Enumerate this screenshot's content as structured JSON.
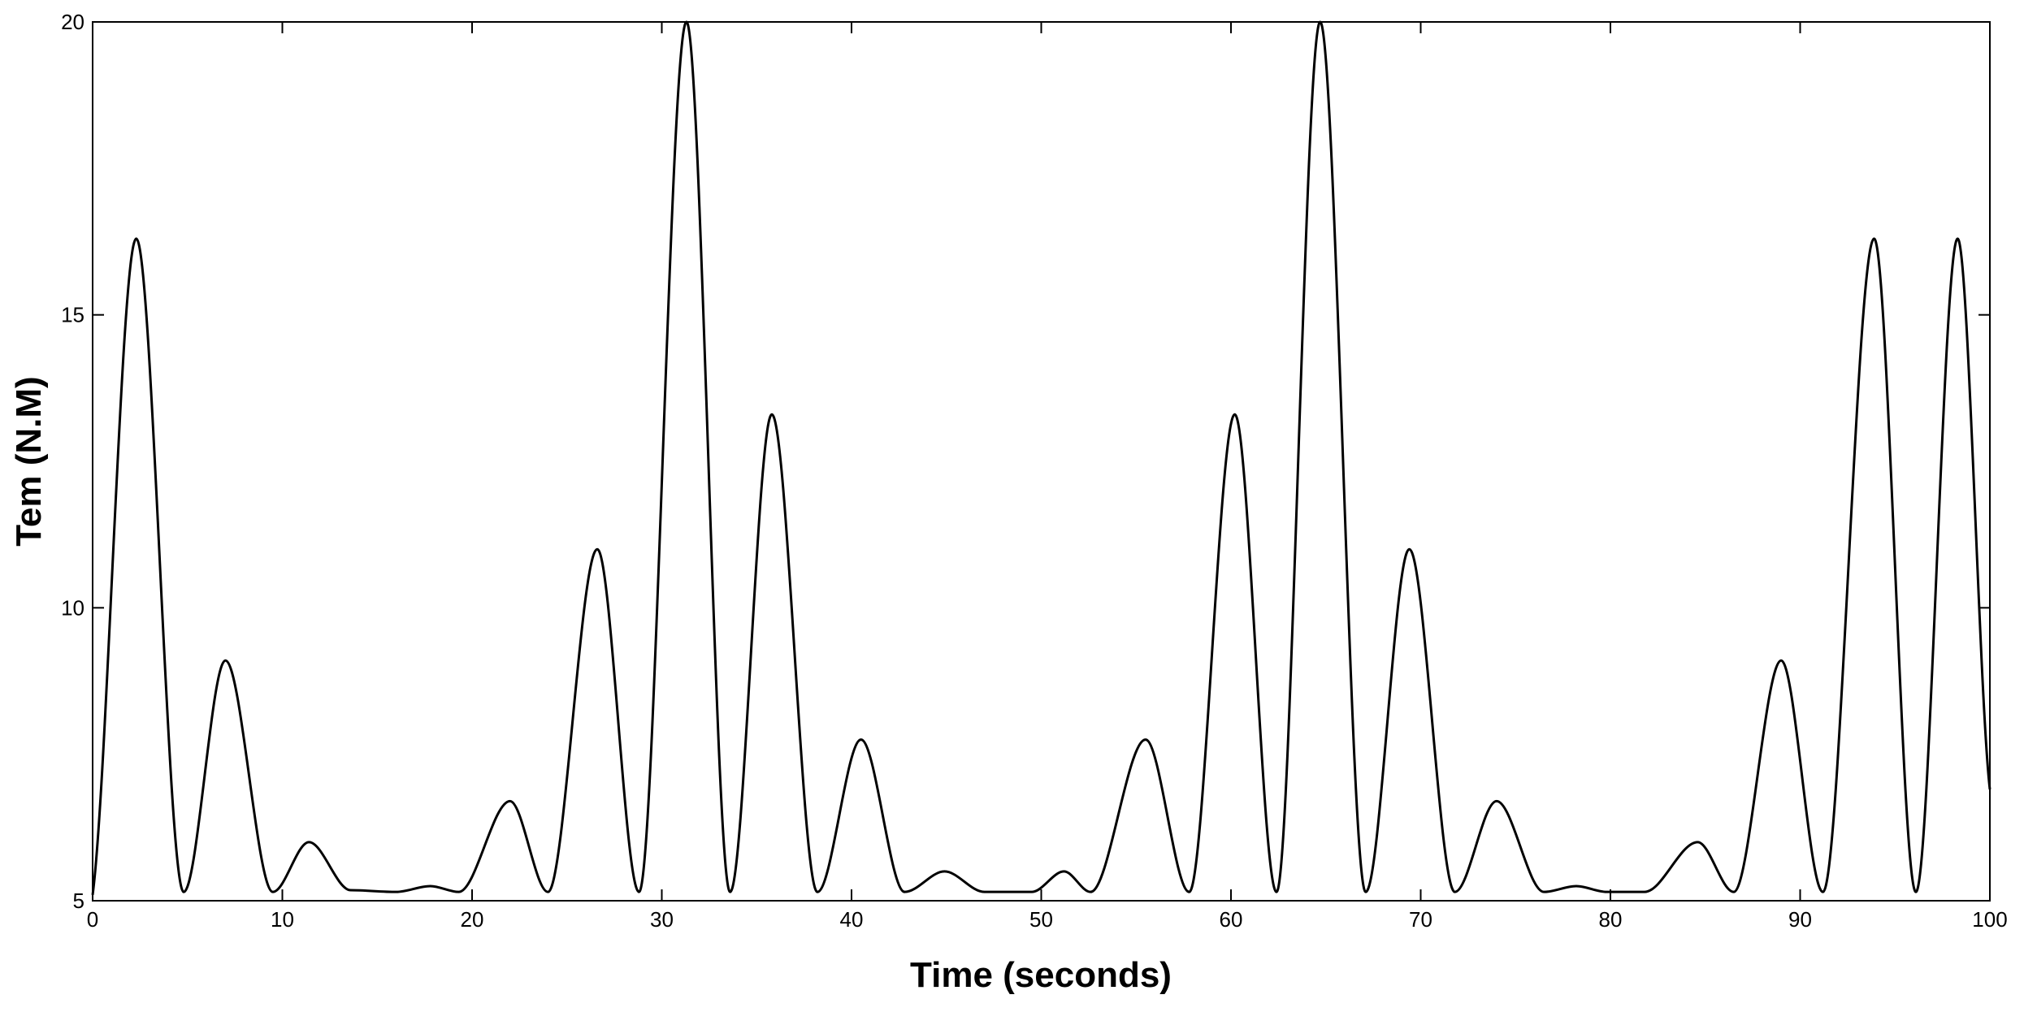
{
  "chart_data": {
    "type": "line",
    "x_label": "Time (seconds)",
    "y_label": "Tem (N.M)",
    "xlim": [
      0,
      100
    ],
    "ylim": [
      5,
      20
    ],
    "xticks": [
      0,
      10,
      20,
      30,
      40,
      50,
      60,
      70,
      80,
      90,
      100
    ],
    "yticks": [
      5,
      10,
      15,
      20
    ],
    "grid": false,
    "series": [
      {
        "color": "#000000",
        "x": [
          0,
          2.3,
          4.8,
          7.0,
          9.5,
          11.4,
          13.6,
          16.0,
          17.8,
          19.3,
          22.0,
          24.0,
          26.6,
          28.8,
          31.3,
          33.6,
          35.8,
          38.2,
          40.5,
          42.8,
          44.9,
          47.0,
          49.5,
          51.2,
          52.6,
          55.5,
          57.8,
          60.2,
          62.4,
          64.7,
          67.1,
          69.4,
          71.8,
          74.0,
          76.5,
          78.2,
          79.8,
          81.8,
          84.6,
          86.5,
          89.0,
          91.2,
          93.9,
          96.1,
          98.3,
          100
        ],
        "values": [
          5.1,
          16.3,
          5.15,
          9.1,
          5.15,
          6.0,
          5.18,
          5.15,
          5.25,
          5.15,
          6.7,
          5.15,
          11.0,
          5.15,
          20,
          5.15,
          13.3,
          5.15,
          7.75,
          5.15,
          5.5,
          5.15,
          5.15,
          5.5,
          5.15,
          7.75,
          5.15,
          13.3,
          5.15,
          20,
          5.15,
          11.0,
          5.15,
          6.7,
          5.15,
          5.25,
          5.15,
          5.15,
          6.0,
          5.15,
          9.1,
          5.15,
          16.3,
          5.15,
          16.3,
          6.9
        ]
      }
    ]
  }
}
